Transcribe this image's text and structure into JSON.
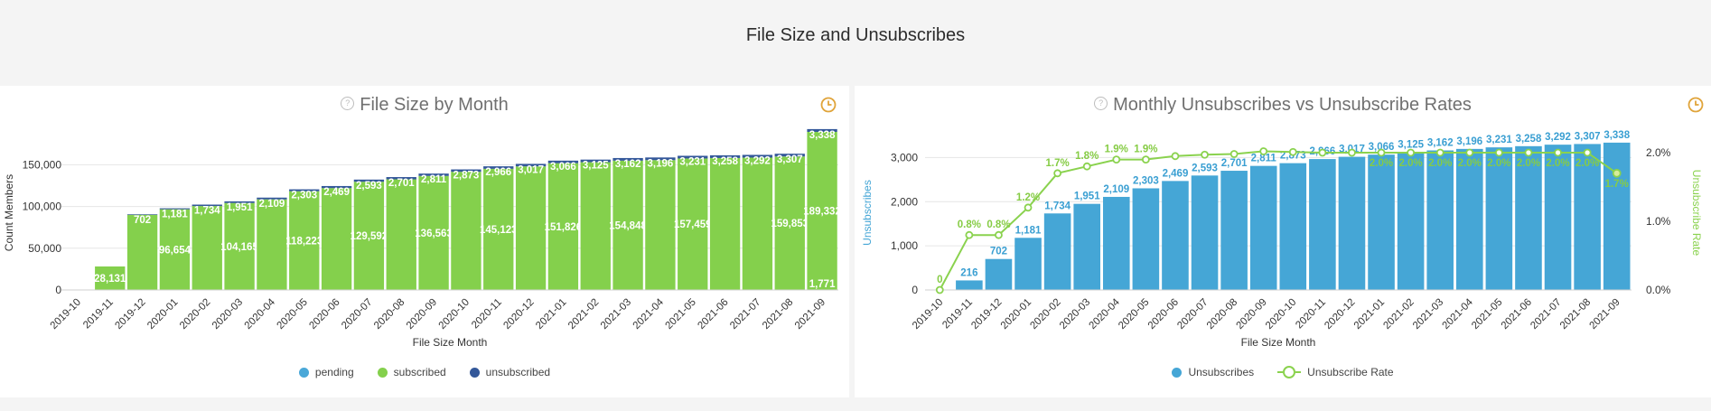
{
  "page_title": "File Size and Unsubscribes",
  "colors": {
    "pending": "#4aa8d8",
    "subscribed": "#84d04c",
    "unsubscribed": "#34589a",
    "unsub_bar": "#45a6d6",
    "rate_line": "#8ad24e",
    "clock": "#e0a43a"
  },
  "icons": {
    "info": "info-icon",
    "clock": "clock-icon"
  },
  "info_glyph": "?",
  "left_chart_title": "File Size by Month",
  "right_chart_title": "Monthly Unsubscribes vs Unsubscribe Rates",
  "chart_data": [
    {
      "type": "bar",
      "stacked": true,
      "title": "File Size by Month",
      "xlabel": "File Size Month",
      "ylabel": "Count Members",
      "ylim": [
        0,
        185000
      ],
      "yticks": [
        0,
        50000,
        100000,
        150000
      ],
      "ytick_labels": [
        "0",
        "50,000",
        "100,000",
        "150,000"
      ],
      "categories": [
        "2019-10",
        "2019-11",
        "2019-12",
        "2020-01",
        "2020-02",
        "2020-03",
        "2020-04",
        "2020-05",
        "2020-06",
        "2020-07",
        "2020-08",
        "2020-09",
        "2020-10",
        "2020-11",
        "2020-12",
        "2021-01",
        "2021-02",
        "2021-03",
        "2021-04",
        "2021-05",
        "2021-06",
        "2021-07",
        "2021-08",
        "2021-09"
      ],
      "series": [
        {
          "name": "pending",
          "values": [
            0,
            0,
            0,
            0,
            0,
            0,
            0,
            0,
            0,
            0,
            0,
            0,
            0,
            0,
            0,
            0,
            0,
            0,
            0,
            0,
            0,
            0,
            0,
            0
          ]
        },
        {
          "name": "subscribed",
          "values": [
            0,
            28131,
            90000,
            96654,
            100500,
            104165,
            108500,
            118223,
            122000,
            129592,
            132500,
            136563,
            141500,
            145123,
            148000,
            151826,
            153000,
            154848,
            155500,
            157459,
            158000,
            158500,
            159853,
            189332
          ]
        },
        {
          "name": "unsubscribed",
          "values": [
            0,
            0,
            702,
            1181,
            1734,
            1951,
            2109,
            2303,
            2469,
            2593,
            2701,
            2811,
            2873,
            2966,
            3017,
            3066,
            3125,
            3162,
            3196,
            3231,
            3258,
            3292,
            3307,
            3338
          ]
        }
      ],
      "subscribed_labels": [
        "",
        "28,131",
        "",
        "96,654",
        "",
        "104,165",
        "",
        "118,223",
        "",
        "129,592",
        "",
        "136,563",
        "",
        "145,123",
        "",
        "151,826",
        "",
        "154,848",
        "",
        "157,459",
        "",
        "",
        "159,853",
        "189,332"
      ],
      "unsubscribed_labels": [
        "",
        "",
        "702",
        "1,181",
        "1,734",
        "1,951",
        "2,109",
        "2,303",
        "2,469",
        "2,593",
        "2,701",
        "2,811",
        "2,873",
        "2,966",
        "3,017",
        "3,066",
        "3,125",
        "3,162",
        "3,196",
        "3,231",
        "3,258",
        "3,292",
        "3,307",
        "3,338"
      ],
      "extra_labels": [
        {
          "category": "2021-09",
          "text": "1,771"
        }
      ],
      "legend": [
        "pending",
        "subscribed",
        "unsubscribed"
      ],
      "legend_position": "bottom-center",
      "grid": true
    },
    {
      "type": "bar",
      "title": "Monthly Unsubscribes vs Unsubscribe Rates",
      "xlabel": "File Size Month",
      "ylabel": "Unsubscribes",
      "ylabel_right": "Unsubscribe Rate",
      "ylim": [
        0,
        3500
      ],
      "yticks": [
        0,
        1000,
        2000,
        3000
      ],
      "ytick_labels": [
        "0",
        "1,000",
        "2,000",
        "3,000"
      ],
      "ylim_right": [
        0,
        2.25
      ],
      "yticks_right": [
        0,
        1,
        2
      ],
      "ytick_right_labels": [
        "0.0%",
        "1.0%",
        "2.0%"
      ],
      "categories": [
        "2019-10",
        "2019-11",
        "2019-12",
        "2020-01",
        "2020-02",
        "2020-03",
        "2020-04",
        "2020-05",
        "2020-06",
        "2020-07",
        "2020-08",
        "2020-09",
        "2020-10",
        "2020-11",
        "2020-12",
        "2021-01",
        "2021-02",
        "2021-03",
        "2021-04",
        "2021-05",
        "2021-06",
        "2021-07",
        "2021-08",
        "2021-09"
      ],
      "series": [
        {
          "name": "Unsubscribes",
          "type": "bar",
          "values": [
            0,
            216,
            702,
            1181,
            1734,
            1951,
            2109,
            2303,
            2469,
            2593,
            2701,
            2811,
            2873,
            2966,
            3017,
            3066,
            3125,
            3162,
            3196,
            3231,
            3258,
            3292,
            3307,
            3338
          ]
        },
        {
          "name": "Unsubscribe Rate",
          "type": "line",
          "axis": "right",
          "values": [
            0,
            0.8,
            0.8,
            1.2,
            1.7,
            1.8,
            1.9,
            1.9,
            1.95,
            1.97,
            1.98,
            2.02,
            2.01,
            2.0,
            2.0,
            2.0,
            2.0,
            2.0,
            2.0,
            2.0,
            2.0,
            2.0,
            2.0,
            1.7
          ]
        }
      ],
      "bar_labels": [
        "",
        "216",
        "702",
        "1,181",
        "1,734",
        "1,951",
        "2,109",
        "2,303",
        "2,469",
        "2,593",
        "2,701",
        "2,811",
        "2,873",
        "2,966",
        "3,017",
        "3,066",
        "3,125",
        "3,162",
        "3,196",
        "3,231",
        "3,258",
        "3,292",
        "3,307",
        "3,338"
      ],
      "rate_labels": [
        "0",
        "0.8%",
        "0.8%",
        "1.2%",
        "1.7%",
        "1.8%",
        "1.9%",
        "1.9%",
        "",
        "",
        "",
        "",
        "",
        "",
        "",
        "2.0%",
        "2.0%",
        "2.0%",
        "2.0%",
        "2.0%",
        "2.0%",
        "2.0%",
        "2.0%",
        "1.7%"
      ],
      "legend": [
        "Unsubscribes",
        "Unsubscribe Rate"
      ],
      "legend_position": "bottom-center",
      "grid": true
    }
  ]
}
